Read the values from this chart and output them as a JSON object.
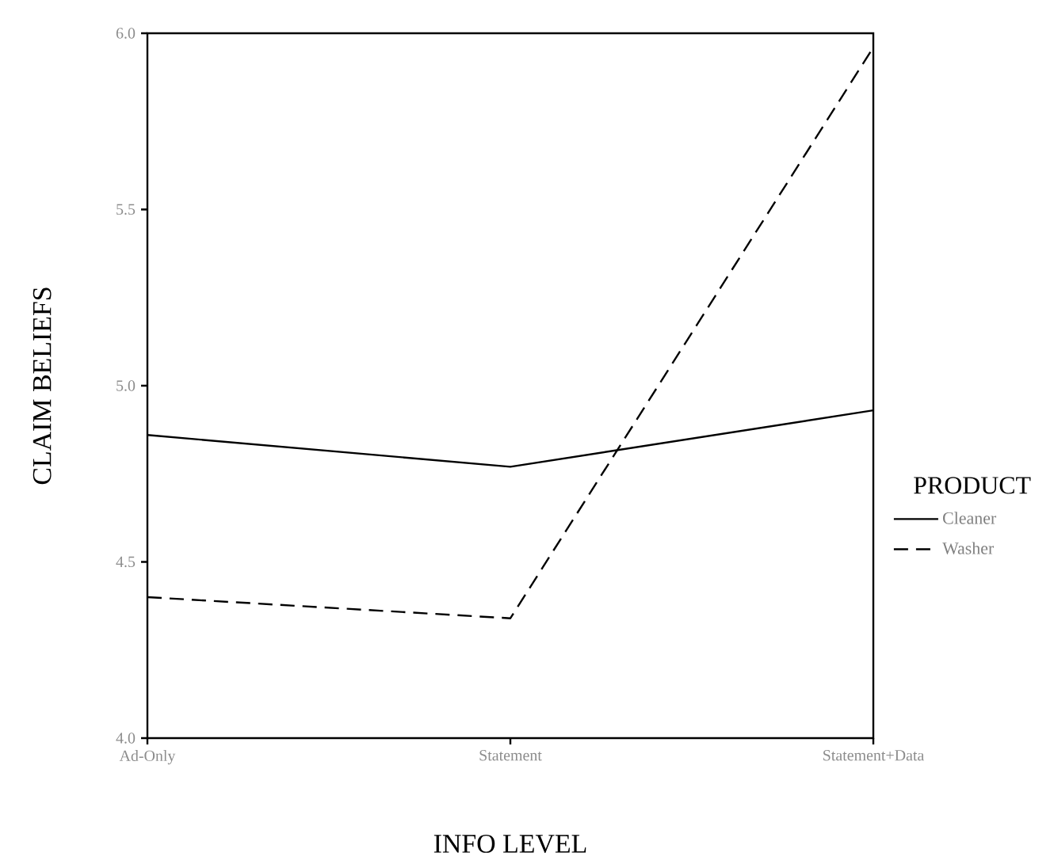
{
  "chart_data": {
    "type": "line",
    "xlabel": "INFO LEVEL",
    "ylabel": "CLAIM BELIEFS",
    "legend_title": "PRODUCT",
    "categories": [
      "Ad-Only",
      "Statement",
      "Statement+Data"
    ],
    "series": [
      {
        "name": "Cleaner",
        "color": "#000000",
        "line_style": "solid",
        "values": [
          4.86,
          4.77,
          4.93
        ]
      },
      {
        "name": "Washer",
        "color": "#000000",
        "line_style": "dashed",
        "values": [
          4.4,
          4.34,
          5.96
        ]
      }
    ],
    "ylim": [
      4.0,
      6.0
    ],
    "yticks": [
      {
        "value": 4.0,
        "label": "4.0"
      },
      {
        "value": 4.5,
        "label": "4.5"
      },
      {
        "value": 5.0,
        "label": "5.0"
      },
      {
        "value": 5.5,
        "label": "5.5"
      },
      {
        "value": 6.0,
        "label": "6.0"
      }
    ],
    "grid": false,
    "legend": "right",
    "marker": "none"
  }
}
